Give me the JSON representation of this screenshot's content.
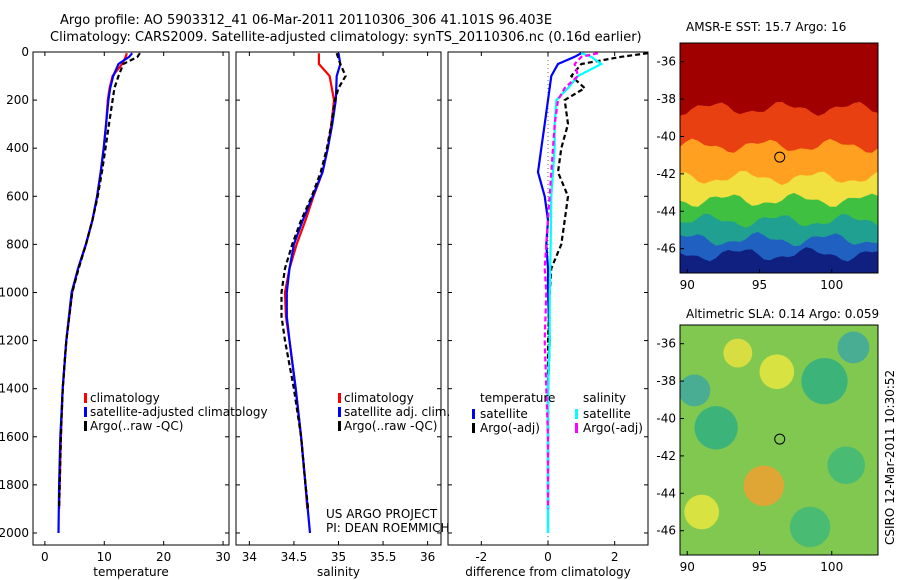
{
  "header": {
    "line1": "Argo profile: AO 5903312_41 06-Mar-2011 20110306_306 41.101S 96.403E",
    "line2": "Climatology: CARS2009. Satellite-adjusted climatology: synTS_20110306.nc (0.16d earlier)"
  },
  "credits": {
    "project": "US ARGO PROJECT",
    "pi": "PI: DEAN ROEMMICH",
    "side": "CSIRO 12-Mar-2011 10:30:52"
  },
  "colors": {
    "climatology": "#ff0000",
    "satellite": "#0000ff",
    "argo": "#000000",
    "sal_satellite": "#00ffff",
    "sal_argo": "#ff00ff"
  },
  "chart_data": [
    {
      "type": "line",
      "name": "temperature",
      "xlabel": "temperature",
      "ylabel": "",
      "xlim": [
        -2,
        31
      ],
      "ylim": [
        0,
        2050
      ],
      "y_reversed": true,
      "xticks": [
        0,
        10,
        20,
        30
      ],
      "xtick_labels": [
        "0",
        "10",
        "20",
        "30"
      ],
      "yticks": [
        0,
        200,
        400,
        600,
        800,
        1000,
        1200,
        1400,
        1600,
        1800,
        2000
      ],
      "ytick_labels": [
        "0",
        "200",
        "400",
        "600",
        "800",
        "1000",
        "1200",
        "1400",
        "1600",
        "1800",
        "2000"
      ],
      "legend": [
        "climatology",
        "satellite-adjusted climatology",
        "Argo(..raw -QC)"
      ],
      "series": [
        {
          "name": "climatology",
          "color": "#ff0000",
          "dash": "",
          "pressure": [
            5,
            20,
            50,
            100,
            150,
            200,
            300,
            400,
            500,
            600,
            700,
            800,
            900,
            1000,
            1200,
            1400,
            1600,
            1800,
            1900
          ],
          "values": [
            13.8,
            13.6,
            13.0,
            11.4,
            10.9,
            10.6,
            10.3,
            9.9,
            9.4,
            8.8,
            8.0,
            6.9,
            5.6,
            4.6,
            3.6,
            3.0,
            2.7,
            2.5,
            2.4
          ]
        },
        {
          "name": "satellite-adjusted climatology",
          "color": "#0000ff",
          "dash": "",
          "pressure": [
            5,
            20,
            50,
            100,
            150,
            200,
            300,
            400,
            500,
            600,
            700,
            800,
            900,
            1000,
            1200,
            1400,
            1600,
            1800,
            2000
          ],
          "values": [
            14.7,
            14.2,
            12.4,
            11.5,
            11.0,
            10.7,
            10.3,
            9.9,
            9.4,
            8.8,
            8.0,
            6.9,
            5.6,
            4.5,
            3.6,
            3.0,
            2.6,
            2.4,
            2.3
          ]
        },
        {
          "name": "Argo(..raw -QC)",
          "color": "#000000",
          "dash": "5,3",
          "pressure": [
            5,
            20,
            50,
            100,
            150,
            200,
            300,
            400,
            500,
            600,
            700,
            800,
            900,
            1000,
            1200,
            1400,
            1600,
            1800,
            1900
          ],
          "values": [
            16.0,
            15.6,
            13.2,
            12.4,
            11.7,
            11.4,
            10.8,
            10.2,
            9.6,
            8.9,
            8.0,
            6.9,
            5.7,
            4.6,
            3.6,
            3.0,
            2.7,
            2.5,
            2.4
          ]
        }
      ]
    },
    {
      "type": "line",
      "name": "salinity",
      "xlabel": "salinity",
      "xlim": [
        33.85,
        36.15
      ],
      "ylim": [
        0,
        2050
      ],
      "y_reversed": true,
      "xticks": [
        34,
        34.5,
        35,
        35.5,
        36
      ],
      "xtick_labels": [
        "34",
        "34.5",
        "35",
        "35.5",
        "36"
      ],
      "legend": [
        "climatology",
        "satellite adj. clim.",
        "Argo(..raw -QC)"
      ],
      "series": [
        {
          "name": "climatology",
          "color": "#ff0000",
          "dash": "",
          "pressure": [
            5,
            50,
            100,
            200,
            300,
            400,
            500,
            600,
            700,
            800,
            900,
            1000,
            1100,
            1200,
            1400,
            1600,
            1800,
            1900
          ],
          "values": [
            34.78,
            34.78,
            34.9,
            34.95,
            34.92,
            34.88,
            34.82,
            34.72,
            34.63,
            34.53,
            34.45,
            34.4,
            34.41,
            34.45,
            34.52,
            34.58,
            34.63,
            34.65
          ]
        },
        {
          "name": "satellite adj. clim.",
          "color": "#0000ff",
          "dash": "",
          "pressure": [
            5,
            50,
            100,
            200,
            300,
            400,
            500,
            600,
            700,
            800,
            900,
            1000,
            1100,
            1200,
            1400,
            1600,
            1800,
            2000
          ],
          "values": [
            35.0,
            35.02,
            34.98,
            34.97,
            34.93,
            34.88,
            34.82,
            34.71,
            34.6,
            34.5,
            34.45,
            34.42,
            34.42,
            34.45,
            34.52,
            34.58,
            34.63,
            34.68
          ]
        },
        {
          "name": "Argo(..raw -QC)",
          "color": "#000000",
          "dash": "5,3",
          "pressure": [
            5,
            50,
            100,
            150,
            200,
            300,
            400,
            500,
            600,
            700,
            800,
            900,
            1000,
            1100,
            1200,
            1400,
            1600,
            1800,
            1900
          ],
          "values": [
            34.98,
            35.02,
            35.08,
            35.0,
            34.96,
            34.92,
            34.87,
            34.8,
            34.7,
            34.58,
            34.48,
            34.4,
            34.36,
            34.36,
            34.4,
            34.5,
            34.58,
            34.63,
            34.66
          ]
        }
      ]
    },
    {
      "type": "line",
      "name": "difference",
      "xlabel": "difference from climatology",
      "xlim": [
        -3,
        3
      ],
      "ylim": [
        0,
        2050
      ],
      "y_reversed": true,
      "xticks": [
        -2,
        0,
        2
      ],
      "xtick_labels": [
        "-2",
        "0",
        "2"
      ],
      "legend_groups": [
        {
          "title": "temperature",
          "items": [
            "satellite",
            "Argo(-adj)"
          ]
        },
        {
          "title": "salinity",
          "items": [
            "satellite",
            "Argo(-adj)"
          ]
        }
      ],
      "series": [
        {
          "name": "temperature satellite",
          "color": "#0000ff",
          "dash": "",
          "pressure": [
            5,
            20,
            50,
            100,
            200,
            300,
            400,
            500,
            600,
            700,
            800,
            900,
            1000,
            1200,
            1400,
            1600,
            1800,
            2000
          ],
          "values": [
            1.0,
            0.8,
            0.3,
            0.1,
            0.0,
            -0.1,
            -0.2,
            -0.3,
            -0.1,
            0.0,
            -0.05,
            0.0,
            0.0,
            0.05,
            0.0,
            0.0,
            0.0,
            0.0
          ]
        },
        {
          "name": "temperature Argo(-adj)",
          "color": "#000000",
          "dash": "5,3",
          "pressure": [
            5,
            20,
            50,
            100,
            150,
            200,
            300,
            400,
            500,
            600,
            700,
            800,
            900,
            1000,
            1200,
            1400,
            1600,
            1800,
            1900
          ],
          "values": [
            3.0,
            2.2,
            1.0,
            0.7,
            1.1,
            0.5,
            0.6,
            0.4,
            0.3,
            0.6,
            0.5,
            0.4,
            0.1,
            0.05,
            0.0,
            0.0,
            0.0,
            0.0,
            0.0
          ]
        },
        {
          "name": "salinity satellite",
          "color": "#00ffff",
          "dash": "",
          "pressure": [
            5,
            20,
            50,
            100,
            150,
            200,
            300,
            400,
            500,
            600,
            800,
            1000,
            1200,
            1400,
            1600,
            1800,
            2000
          ],
          "values": [
            1.0,
            1.3,
            1.6,
            0.9,
            0.6,
            0.25,
            0.2,
            0.2,
            0.15,
            0.1,
            0.08,
            0.05,
            0.05,
            0.0,
            0.0,
            0.0,
            0.0
          ]
        },
        {
          "name": "salinity Argo(-adj)",
          "color": "#ff00ff",
          "dash": "5,3",
          "pressure": [
            5,
            20,
            50,
            100,
            150,
            200,
            300,
            500,
            700,
            800,
            900,
            1000,
            1200,
            1400,
            1600,
            1800,
            1900
          ],
          "values": [
            1.5,
            1.0,
            0.8,
            0.9,
            0.5,
            0.3,
            0.2,
            0.1,
            0.0,
            -0.05,
            -0.1,
            -0.05,
            -0.1,
            -0.05,
            0.0,
            0.0,
            0.0
          ]
        }
      ]
    },
    {
      "type": "heatmap",
      "name": "sst-map",
      "title": "AMSR-E SST: 15.7  Argo: 16",
      "xlim": [
        89.5,
        103.2
      ],
      "ylim": [
        -47.3,
        -35
      ],
      "xticks": [
        90,
        95,
        100
      ],
      "xtick_labels": [
        "90",
        "95",
        "100"
      ],
      "yticks": [
        -36,
        -38,
        -40,
        -42,
        -44,
        -46
      ],
      "ytick_labels": [
        "-36",
        "-38",
        "-40",
        "-42",
        "-44",
        "-46"
      ],
      "marker": {
        "lon": 96.4,
        "lat": -41.1
      },
      "bands_lat_top": [
        -35,
        -38.5,
        -40.5,
        -42.2,
        -43.4,
        -44.5,
        -45.5,
        -46.3
      ],
      "bands_colors": [
        "#a00000",
        "#e84010",
        "#ffa020",
        "#f0e040",
        "#40c040",
        "#20a090",
        "#2060c0",
        "#102080"
      ]
    },
    {
      "type": "heatmap",
      "name": "sla-map",
      "title": "Altimetric SLA: 0.14  Argo: 0.059",
      "xlim": [
        89.5,
        103.2
      ],
      "ylim": [
        -47.3,
        -35
      ],
      "xticks": [
        90,
        95,
        100
      ],
      "xtick_labels": [
        "90",
        "95",
        "100"
      ],
      "yticks": [
        -36,
        -38,
        -40,
        -42,
        -44,
        -46
      ],
      "ytick_labels": [
        "-36",
        "-38",
        "-40",
        "-42",
        "-44",
        "-46"
      ],
      "marker": {
        "lon": 96.4,
        "lat": -41.1
      },
      "blobs": [
        {
          "lon": 96.2,
          "lat": -37.5,
          "r": 1.2,
          "color": "#e8e840"
        },
        {
          "lon": 95.3,
          "lat": -43.6,
          "r": 1.4,
          "color": "#f0a030"
        },
        {
          "lon": 92.0,
          "lat": -40.5,
          "r": 1.5,
          "color": "#30b080"
        },
        {
          "lon": 99.5,
          "lat": -38.0,
          "r": 1.6,
          "color": "#30b080"
        },
        {
          "lon": 101.0,
          "lat": -42.5,
          "r": 1.3,
          "color": "#40b878"
        },
        {
          "lon": 91.0,
          "lat": -45.0,
          "r": 1.2,
          "color": "#e8e840"
        },
        {
          "lon": 98.5,
          "lat": -45.8,
          "r": 1.4,
          "color": "#40b878"
        },
        {
          "lon": 93.5,
          "lat": -36.5,
          "r": 1.0,
          "color": "#e8e040"
        },
        {
          "lon": 101.5,
          "lat": -36.2,
          "r": 1.1,
          "color": "#40a8a0"
        },
        {
          "lon": 90.5,
          "lat": -38.5,
          "r": 1.1,
          "color": "#40a8a0"
        }
      ]
    }
  ]
}
